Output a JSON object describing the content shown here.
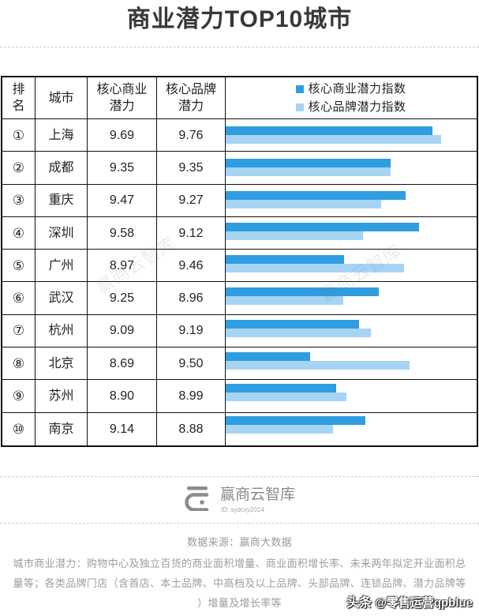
{
  "title": "商业潜力TOP10城市",
  "table": {
    "headers": {
      "rank": "排名",
      "city": "城市",
      "commercial": "核心商业潜力",
      "brand": "核心品牌潜力"
    },
    "rows": [
      {
        "rank": "①",
        "commercial": "9.69",
        "brand": "9.76"
      },
      {
        "rank": "②",
        "commercial": "9.35",
        "brand": "9.35"
      },
      {
        "rank": "③",
        "commercial": "9.47",
        "brand": "9.27"
      },
      {
        "rank": "④",
        "commercial": "9.58",
        "brand": "9.12"
      },
      {
        "rank": "⑤",
        "commercial": "8.97",
        "brand": "9.46"
      },
      {
        "rank": "⑥",
        "commercial": "9.25",
        "brand": "8.96"
      },
      {
        "rank": "⑦",
        "commercial": "9.09",
        "brand": "9.19"
      },
      {
        "rank": "⑧",
        "commercial": "8.69",
        "brand": "9.50"
      },
      {
        "rank": "⑨",
        "commercial": "8.90",
        "brand": "8.99"
      },
      {
        "rank": "⑩",
        "commercial": "9.14",
        "brand": "8.88"
      }
    ]
  },
  "chart_data": {
    "type": "bar",
    "orientation": "horizontal",
    "categories": [
      "上海",
      "成都",
      "重庆",
      "深圳",
      "广州",
      "武汉",
      "杭州",
      "北京",
      "苏州",
      "南京"
    ],
    "series": [
      {
        "name": "核心商业潜力指数",
        "color": "#2f9ddf",
        "values": [
          9.69,
          9.35,
          9.47,
          9.58,
          8.97,
          9.25,
          9.09,
          8.69,
          8.9,
          9.14
        ]
      },
      {
        "name": "核心品牌潜力指数",
        "color": "#a6d4f4",
        "values": [
          9.76,
          9.35,
          9.27,
          9.12,
          9.46,
          8.96,
          9.19,
          9.5,
          8.99,
          8.88
        ]
      }
    ],
    "xlim": [
      8,
      10
    ],
    "grid": false,
    "legend": "top"
  },
  "watermark": "赢商云智库",
  "logo": {
    "icon": "yingshang-logo-icon",
    "name": "赢商云智库",
    "id": "ID: sydcxy2014"
  },
  "source": "数据来源：赢商大数据",
  "note_lines": [
    "城市商业潜力：购物中心及独立百货的商业面积增量、商业面积增长率、未来两年拟定开业面积总",
    "量等；各类品牌门店（含首店、本土品牌、中高档及以上品牌、头部品牌、连锁品牌、潜力品牌等",
    "）增量及增长率等"
  ],
  "platform_overlay": {
    "brand": "头条",
    "account": "@零售运营qpblue"
  }
}
